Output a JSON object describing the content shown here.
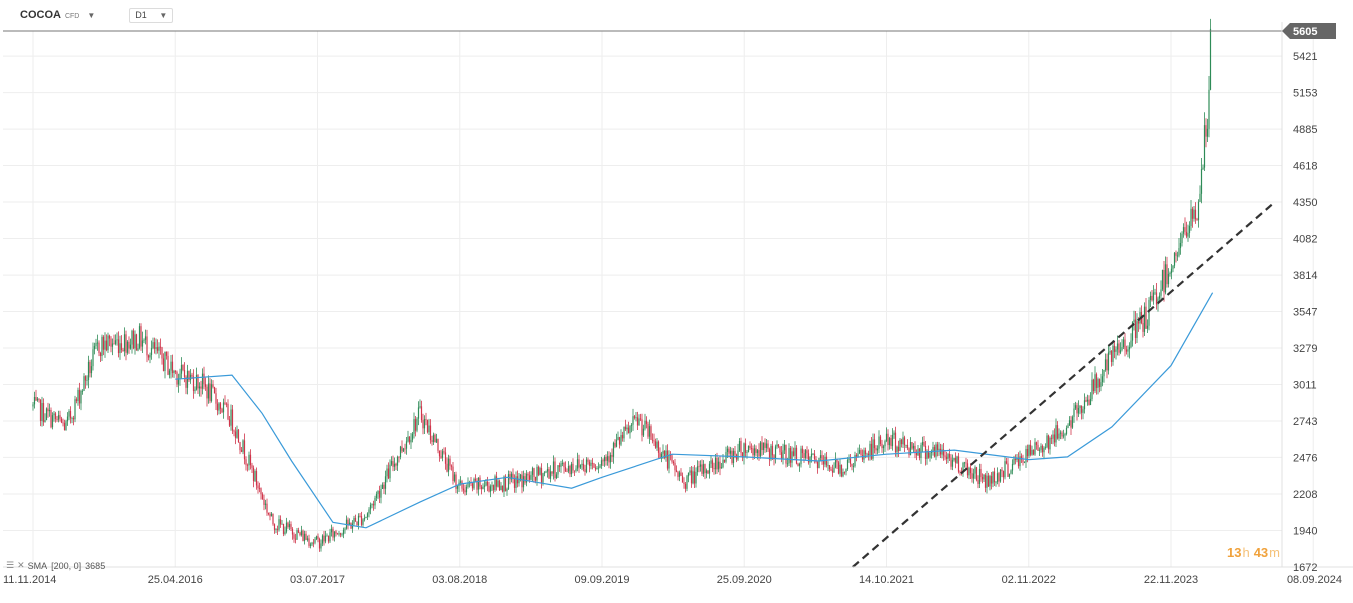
{
  "toolbar": {
    "symbol": "COCOA",
    "symbol_type": "CFD",
    "timeframe": "D1"
  },
  "indicator": {
    "label": "SMA",
    "params": "[200,  0]",
    "value": "3685"
  },
  "timer": {
    "hours": "13",
    "hours_unit": "h",
    "minutes": "43",
    "minutes_unit": "m"
  },
  "colors": {
    "up": "#2e8b57",
    "down": "#d0344a",
    "sma": "#3a9ad9",
    "price_tag": "#666666",
    "trendline": "#333333"
  },
  "chart_data": {
    "type": "candlestick",
    "symbol": "COCOA",
    "timeframe": "D1",
    "current_price": 5605,
    "y_ticks": [
      5605,
      5421,
      5153,
      4885,
      4618,
      4350,
      4082,
      3814,
      3547,
      3279,
      3011,
      2743,
      2476,
      2208,
      1940,
      1672
    ],
    "x_ticks": [
      "11.11.2014",
      "25.04.2016",
      "03.07.2017",
      "03.08.2018",
      "09.09.2019",
      "25.09.2020",
      "14.10.2021",
      "02.11.2022",
      "22.11.2023",
      "08.09.2024"
    ],
    "ylim": [
      1672,
      5605
    ],
    "price_path": [
      {
        "date": "11.11.2014",
        "price": 2850
      },
      {
        "date": "15.03.2015",
        "price": 2700
      },
      {
        "date": "15.07.2015",
        "price": 3300
      },
      {
        "date": "15.12.2015",
        "price": 3350
      },
      {
        "date": "25.04.2016",
        "price": 3100
      },
      {
        "date": "15.07.2016",
        "price": 3020
      },
      {
        "date": "15.10.2016",
        "price": 2750
      },
      {
        "date": "15.02.2017",
        "price": 2000
      },
      {
        "date": "03.07.2017",
        "price": 1850
      },
      {
        "date": "15.11.2017",
        "price": 2050
      },
      {
        "date": "15.04.2018",
        "price": 2800
      },
      {
        "date": "03.08.2018",
        "price": 2250
      },
      {
        "date": "15.01.2019",
        "price": 2300
      },
      {
        "date": "15.05.2019",
        "price": 2400
      },
      {
        "date": "09.09.2019",
        "price": 2450
      },
      {
        "date": "15.12.2019",
        "price": 2750
      },
      {
        "date": "15.04.2020",
        "price": 2300
      },
      {
        "date": "25.09.2020",
        "price": 2550
      },
      {
        "date": "15.01.2021",
        "price": 2500
      },
      {
        "date": "15.06.2021",
        "price": 2400
      },
      {
        "date": "14.10.2021",
        "price": 2600
      },
      {
        "date": "15.03.2022",
        "price": 2500
      },
      {
        "date": "15.07.2022",
        "price": 2300
      },
      {
        "date": "02.11.2022",
        "price": 2500
      },
      {
        "date": "15.02.2023",
        "price": 2700
      },
      {
        "date": "15.06.2023",
        "price": 3200
      },
      {
        "date": "15.09.2023",
        "price": 3500
      },
      {
        "date": "22.11.2023",
        "price": 3900
      },
      {
        "date": "15.01.2024",
        "price": 4300
      },
      {
        "date": "05.02.2024",
        "price": 5000
      },
      {
        "date": "12.02.2024",
        "price": 5605
      }
    ],
    "series": [
      {
        "name": "SMA [200, 0]",
        "points": [
          {
            "date": "25.04.2016",
            "price": 3050
          },
          {
            "date": "15.10.2016",
            "price": 3080
          },
          {
            "date": "15.01.2017",
            "price": 2800
          },
          {
            "date": "15.04.2017",
            "price": 2450
          },
          {
            "date": "15.08.2017",
            "price": 2000
          },
          {
            "date": "15.11.2017",
            "price": 1960
          },
          {
            "date": "15.04.2018",
            "price": 2150
          },
          {
            "date": "03.08.2018",
            "price": 2280
          },
          {
            "date": "15.12.2018",
            "price": 2330
          },
          {
            "date": "15.06.2019",
            "price": 2250
          },
          {
            "date": "09.09.2019",
            "price": 2330
          },
          {
            "date": "15.03.2020",
            "price": 2500
          },
          {
            "date": "25.09.2020",
            "price": 2480
          },
          {
            "date": "15.04.2021",
            "price": 2450
          },
          {
            "date": "14.10.2021",
            "price": 2500
          },
          {
            "date": "15.04.2022",
            "price": 2530
          },
          {
            "date": "02.11.2022",
            "price": 2460
          },
          {
            "date": "15.02.2023",
            "price": 2480
          },
          {
            "date": "15.06.2023",
            "price": 2700
          },
          {
            "date": "22.11.2023",
            "price": 3150
          },
          {
            "date": "15.02.2024",
            "price": 3685
          }
        ]
      }
    ],
    "annotations": [
      {
        "type": "trendline",
        "style": "dashed",
        "points": [
          {
            "date": "15.07.2021",
            "price": 1672
          },
          {
            "date": "15.06.2024",
            "price": 4330
          }
        ]
      }
    ],
    "grid": true
  }
}
